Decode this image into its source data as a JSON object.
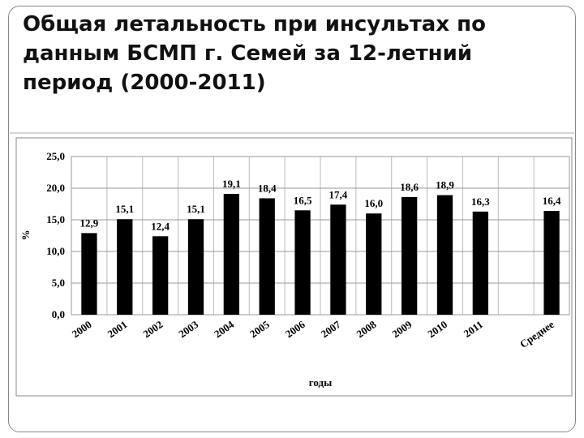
{
  "chart_data": {
    "type": "bar",
    "title": "Общая летальность при инсультах по данным  БСМП г. Семей за 12-летний период (2000-2011)",
    "x_label": "годы",
    "y_label": "%",
    "categories": [
      "2000",
      "2001",
      "2002",
      "2003",
      "2004",
      "2005",
      "2006",
      "2007",
      "2008",
      "2009",
      "2010",
      "2011",
      null,
      "Среднее"
    ],
    "values": [
      12.9,
      15.1,
      12.4,
      15.1,
      19.1,
      18.4,
      16.5,
      17.4,
      16.0,
      18.6,
      18.9,
      16.3,
      null,
      16.4
    ],
    "value_labels": [
      "12,9",
      "15,1",
      "12,4",
      "15,1",
      "19,1",
      "18,4",
      "16,5",
      "17,4",
      "16,0",
      "18,6",
      "18,9",
      "16,3",
      null,
      "16,4"
    ],
    "color": "#000000",
    "ylim": [
      0,
      25
    ],
    "yticks": [
      {
        "value": 0,
        "label": "0,0"
      },
      {
        "value": 5,
        "label": "5,0"
      },
      {
        "value": 10,
        "label": "10,0"
      },
      {
        "value": 15,
        "label": "15,0"
      },
      {
        "value": 20,
        "label": "20,0"
      },
      {
        "value": 25,
        "label": "25,0"
      }
    ],
    "grid": true
  }
}
